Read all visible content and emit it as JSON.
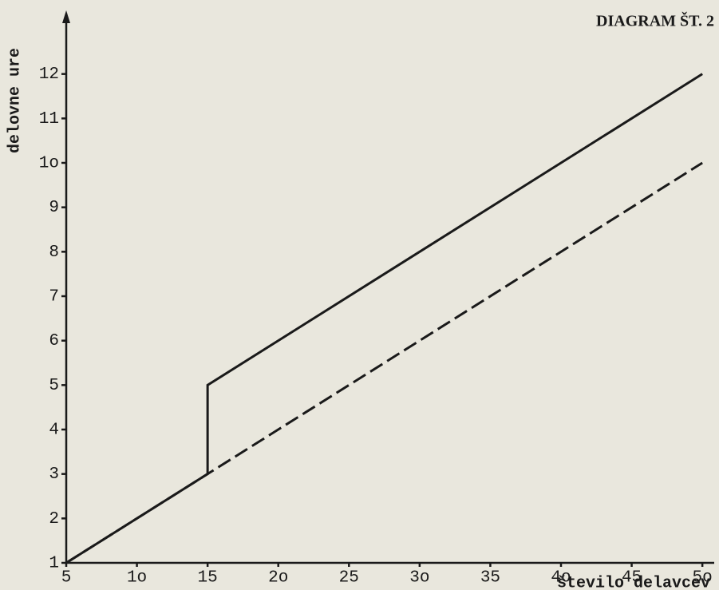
{
  "chart_data": {
    "type": "line",
    "title": "DIAGRAM ŠT. 2",
    "ylabel": "delovne ure",
    "xlabel": "število delavcev",
    "series": [
      {
        "color": "#1a1a1a",
        "style": "solid",
        "x": [
          5,
          15,
          15,
          50
        ],
        "values": [
          1,
          3,
          5,
          12
        ]
      },
      {
        "color": "#1a1a1a",
        "style": "dashed",
        "x": [
          5,
          15,
          50
        ],
        "values": [
          1,
          3,
          10
        ]
      }
    ],
    "xlim": [
      5,
      50.5
    ],
    "ylim": [
      1,
      13
    ],
    "xticks": [
      5,
      {
        "value": 10,
        "label": "1o"
      },
      15,
      {
        "value": 20,
        "label": "2o"
      },
      25,
      {
        "value": 30,
        "label": "3o"
      },
      35,
      {
        "value": 40,
        "label": "4o"
      },
      45,
      {
        "value": 50,
        "label": "5o"
      }
    ],
    "yticks": [
      1,
      2,
      3,
      4,
      5,
      6,
      7,
      8,
      9,
      {
        "value": 10,
        "label": "1o"
      },
      11,
      12
    ],
    "grid": false
  }
}
